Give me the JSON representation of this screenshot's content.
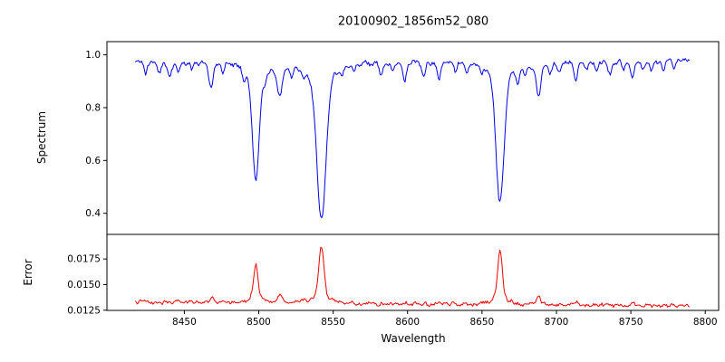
{
  "chart_data": {
    "type": "line",
    "title": "20100902_1856m52_080",
    "xlabel": "Wavelength",
    "x_range": [
      8417,
      8790
    ],
    "xlim": [
      8398,
      8809
    ],
    "x_ticks": [
      8450,
      8500,
      8550,
      8600,
      8650,
      8700,
      8750,
      8800
    ],
    "x_tick_labels": [
      "8450",
      "8500",
      "8550",
      "8600",
      "8650",
      "8700",
      "8750",
      "8800"
    ],
    "grid": false,
    "legend": "none",
    "noise_seed": 42,
    "panels": [
      {
        "name": "spectrum",
        "ylabel": "Spectrum",
        "color": "#0000ee",
        "ylim": [
          0.32,
          1.05
        ],
        "y_ticks": [
          0.4,
          0.6,
          0.8,
          1.0
        ],
        "y_tick_labels": [
          "0.4",
          "0.6",
          "0.8",
          "1.0"
        ],
        "continuum": 0.98,
        "noise_amplitude": 0.012,
        "absorption_lines": [
          {
            "center": 8498.0,
            "depth": 0.45,
            "width": 2.2
          },
          {
            "center": 8542.1,
            "depth": 0.605,
            "width": 3.0
          },
          {
            "center": 8662.1,
            "depth": 0.535,
            "width": 2.6
          },
          {
            "center": 8424,
            "depth": 0.05,
            "width": 1.1
          },
          {
            "center": 8433,
            "depth": 0.04,
            "width": 1.0
          },
          {
            "center": 8440,
            "depth": 0.06,
            "width": 1.2
          },
          {
            "center": 8446,
            "depth": 0.04,
            "width": 1.0
          },
          {
            "center": 8455,
            "depth": 0.03,
            "width": 1.0
          },
          {
            "center": 8468,
            "depth": 0.1,
            "width": 1.4
          },
          {
            "center": 8476,
            "depth": 0.04,
            "width": 1.0
          },
          {
            "center": 8490,
            "depth": 0.05,
            "width": 1.0
          },
          {
            "center": 8504,
            "depth": 0.05,
            "width": 1.0
          },
          {
            "center": 8514,
            "depth": 0.12,
            "width": 1.5
          },
          {
            "center": 8522,
            "depth": 0.04,
            "width": 1.0
          },
          {
            "center": 8530,
            "depth": 0.03,
            "width": 1.0
          },
          {
            "center": 8556,
            "depth": 0.04,
            "width": 1.0
          },
          {
            "center": 8564,
            "depth": 0.03,
            "width": 1.0
          },
          {
            "center": 8582,
            "depth": 0.05,
            "width": 1.1
          },
          {
            "center": 8590,
            "depth": 0.03,
            "width": 1.0
          },
          {
            "center": 8598,
            "depth": 0.07,
            "width": 1.2
          },
          {
            "center": 8611,
            "depth": 0.05,
            "width": 1.1
          },
          {
            "center": 8621,
            "depth": 0.07,
            "width": 1.2
          },
          {
            "center": 8632,
            "depth": 0.04,
            "width": 1.0
          },
          {
            "center": 8640,
            "depth": 0.04,
            "width": 1.0
          },
          {
            "center": 8650,
            "depth": 0.03,
            "width": 1.0
          },
          {
            "center": 8674,
            "depth": 0.06,
            "width": 1.1
          },
          {
            "center": 8679,
            "depth": 0.04,
            "width": 1.0
          },
          {
            "center": 8688,
            "depth": 0.13,
            "width": 1.5
          },
          {
            "center": 8696,
            "depth": 0.04,
            "width": 1.0
          },
          {
            "center": 8702,
            "depth": 0.04,
            "width": 1.0
          },
          {
            "center": 8713,
            "depth": 0.07,
            "width": 1.2
          },
          {
            "center": 8720,
            "depth": 0.03,
            "width": 1.0
          },
          {
            "center": 8727,
            "depth": 0.04,
            "width": 1.0
          },
          {
            "center": 8736,
            "depth": 0.05,
            "width": 1.1
          },
          {
            "center": 8745,
            "depth": 0.03,
            "width": 1.0
          },
          {
            "center": 8751,
            "depth": 0.06,
            "width": 1.1
          },
          {
            "center": 8758,
            "depth": 0.03,
            "width": 1.0
          },
          {
            "center": 8764,
            "depth": 0.04,
            "width": 1.0
          },
          {
            "center": 8772,
            "depth": 0.04,
            "width": 1.0
          },
          {
            "center": 8779,
            "depth": 0.03,
            "width": 1.0
          }
        ]
      },
      {
        "name": "error",
        "ylabel": "Error",
        "color": "#ee0000",
        "ylim": [
          0.01248,
          0.0199
        ],
        "y_ticks": [
          0.0125,
          0.015,
          0.0175
        ],
        "y_tick_labels": [
          "0.0125",
          "0.0150",
          "0.0175"
        ],
        "baseline_left": 0.0133,
        "baseline_right": 0.0129,
        "noise_amplitude": 0.00022,
        "peaks": [
          {
            "center": 8498.0,
            "height": 0.0037,
            "width": 1.4
          },
          {
            "center": 8542.1,
            "height": 0.0055,
            "width": 1.7
          },
          {
            "center": 8662.1,
            "height": 0.0053,
            "width": 1.5
          },
          {
            "center": 8468,
            "height": 0.0005,
            "width": 1.2
          },
          {
            "center": 8514,
            "height": 0.0008,
            "width": 1.3
          },
          {
            "center": 8688,
            "height": 0.0008,
            "width": 1.3
          },
          {
            "center": 8713,
            "height": 0.0004,
            "width": 1.2
          },
          {
            "center": 8751,
            "height": 0.0004,
            "width": 1.2
          }
        ]
      }
    ]
  }
}
